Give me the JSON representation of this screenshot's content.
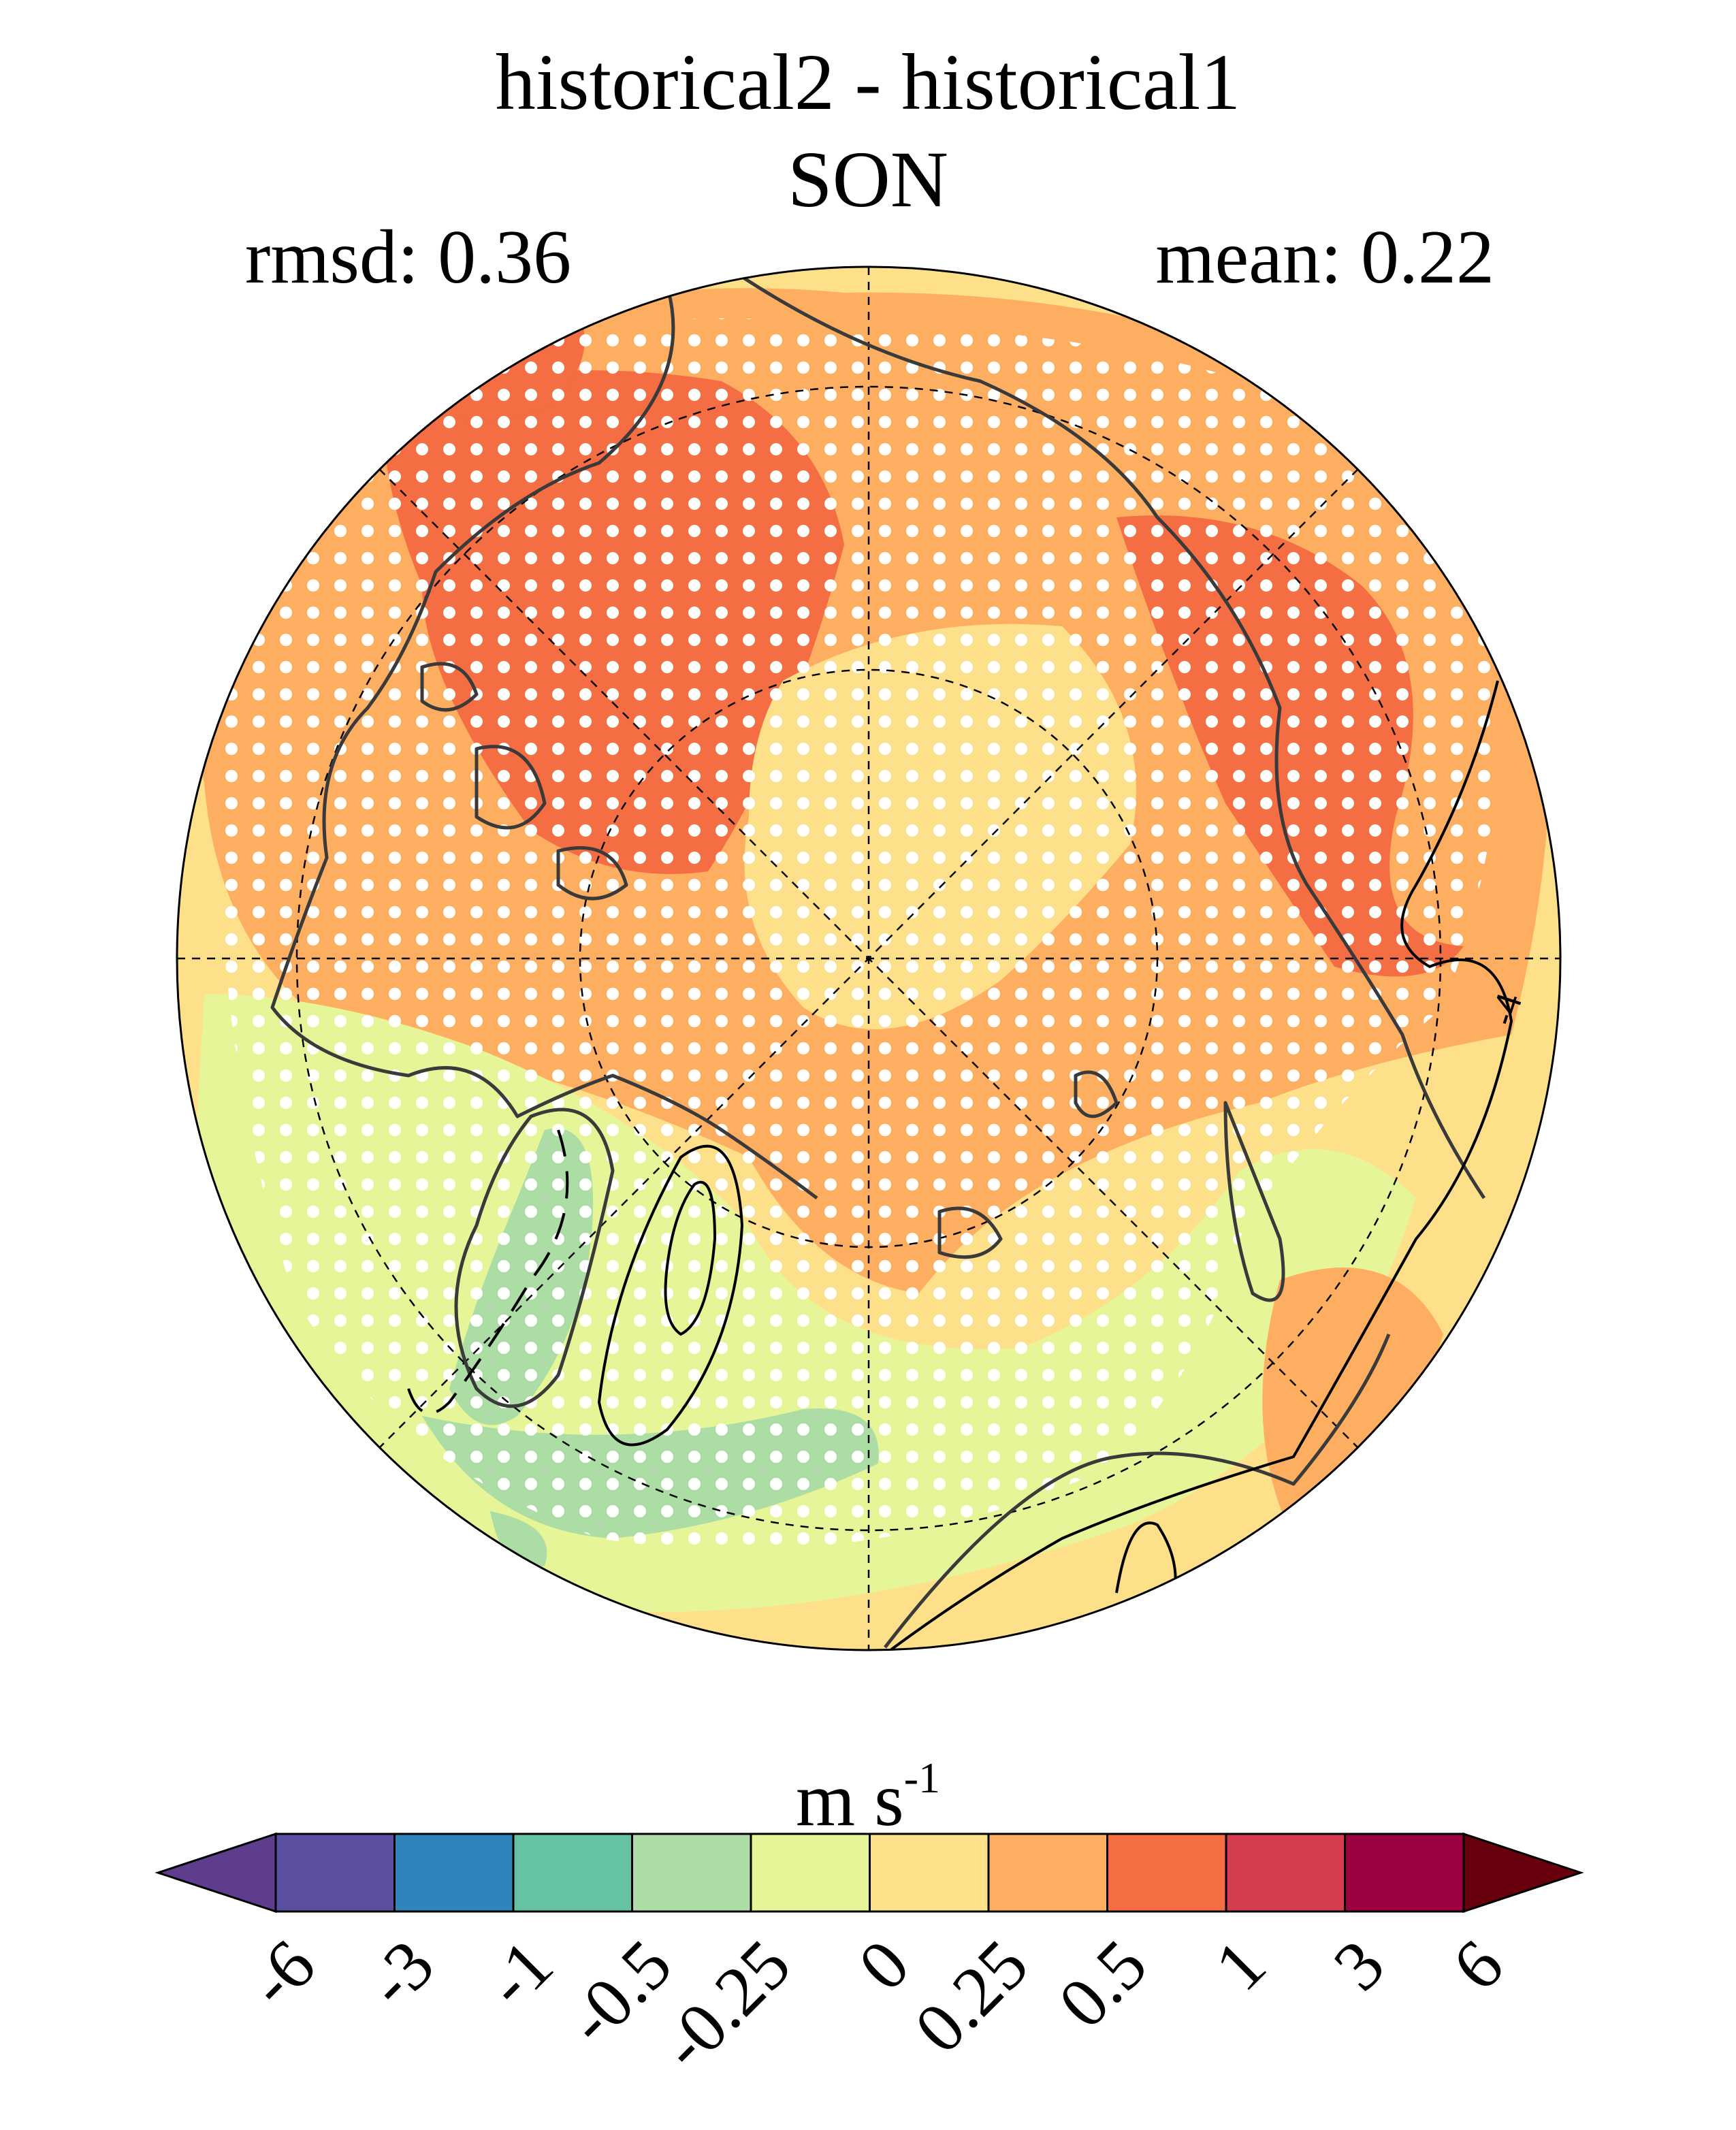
{
  "title": {
    "line1": "historical2 - historical1",
    "line2": "SON"
  },
  "stats": {
    "rmsd_label": "rmsd: 0.36",
    "mean_label": "mean: 0.22"
  },
  "contour_label": "-4",
  "colorbar": {
    "units_base": "m s",
    "units_exponent": "-1",
    "ticks": [
      "-6",
      "-3",
      "-1",
      "-0.5",
      "-0.25",
      "0",
      "0.25",
      "0.5",
      "1",
      "3",
      "6"
    ],
    "colors": [
      "#5e3c8e",
      "#5b4fa1",
      "#3083bb",
      "#66c2a5",
      "#abdda4",
      "#e6f598",
      "#fee08b",
      "#fdae61",
      "#f46d43",
      "#d53e4f",
      "#9e0142",
      "#67000d"
    ]
  },
  "map": {
    "colors": {
      "ocean_base": "#fee08b",
      "mid_positive": "#fdae61",
      "high_positive": "#f46d43",
      "near_zero_negative": "#e6f598",
      "negative": "#abdda4"
    }
  }
}
